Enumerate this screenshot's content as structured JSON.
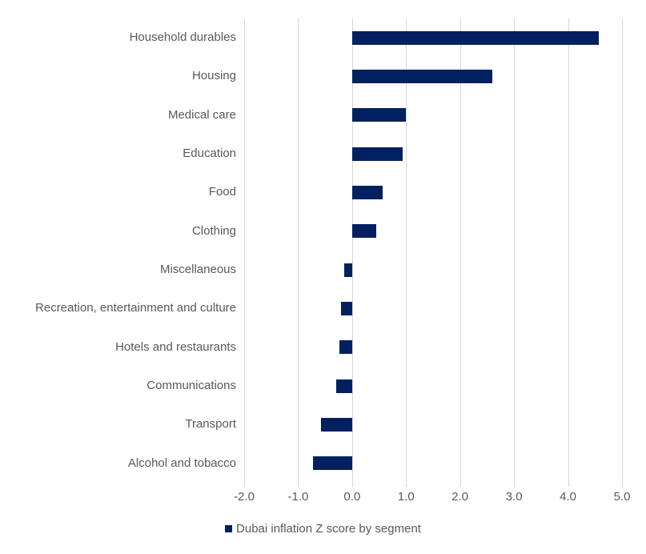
{
  "chart_data": {
    "type": "bar",
    "orientation": "horizontal",
    "title": "",
    "legend": "Dubai inflation Z score by segment",
    "legend_position": "bottom-center",
    "grid": true,
    "xlim": [
      -2.0,
      5.0
    ],
    "x_tick_labels": [
      "-2.0",
      "-1.0",
      "0.0",
      "1.0",
      "2.0",
      "3.0",
      "4.0",
      "5.0"
    ],
    "x_tick_values": [
      -2.0,
      -1.0,
      0.0,
      1.0,
      2.0,
      3.0,
      4.0,
      5.0
    ],
    "categories": [
      "Household durables",
      "Housing",
      "Medical care",
      "Education",
      "Food",
      "Clothing",
      "Miscellaneous",
      "Recreation, entertainment and culture",
      "Hotels and restaurants",
      "Communications",
      "Transport",
      "Alcohol and tobacco"
    ],
    "values": [
      4.57,
      2.6,
      1.0,
      0.94,
      0.56,
      0.45,
      -0.14,
      -0.2,
      -0.24,
      -0.3,
      -0.58,
      -0.73
    ]
  },
  "colors": {
    "bar": "#002060",
    "grid": "#d6d6d6",
    "label": "#595959",
    "background": "#ffffff"
  }
}
